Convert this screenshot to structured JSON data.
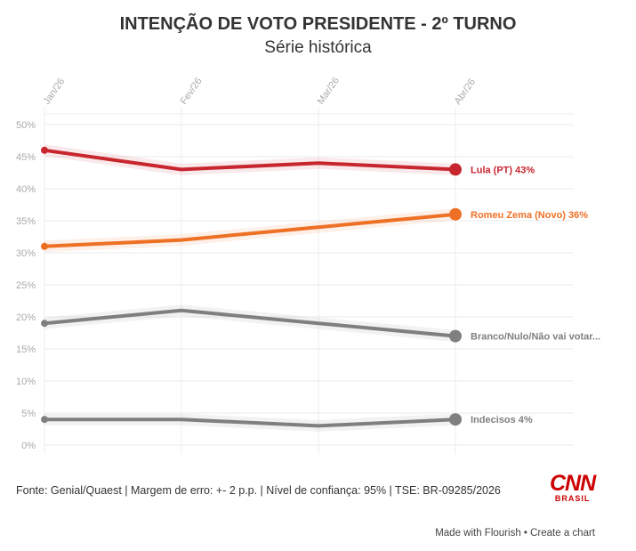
{
  "chart_data": {
    "type": "line",
    "title": "INTENÇÃO DE VOTO PRESIDENTE - 2º TURNO",
    "subtitle": "Série histórica",
    "categories": [
      "Jan/26",
      "Fev/26",
      "Mar/26",
      "Abr/26"
    ],
    "yticks": [
      "0%",
      "5%",
      "10%",
      "15%",
      "20%",
      "25%",
      "30%",
      "35%",
      "40%",
      "45%",
      "50%"
    ],
    "ylim": [
      0,
      50
    ],
    "series": [
      {
        "name": "Lula (PT)",
        "label": "Lula (PT) 43%",
        "color": "#c8262f",
        "values": [
          46,
          43,
          44,
          43
        ]
      },
      {
        "name": "Romeu Zema (Novo)",
        "label": "Romeu Zema (Novo) 36%",
        "color": "#ee7025",
        "values": [
          31,
          32,
          34,
          36
        ]
      },
      {
        "name": "Branco/Nulo/Não vai votar",
        "label": "Branco/Nulo/Não vai votar...",
        "color": "#7f7f7f",
        "values": [
          19,
          21,
          19,
          17
        ]
      },
      {
        "name": "Indecisos",
        "label": "Indecisos 4%",
        "color": "#7f7f7f",
        "values": [
          4,
          4,
          3,
          4
        ]
      }
    ]
  },
  "footer": {
    "source": "Fonte: Genial/Quaest | Margem de erro: +- 2 p.p. | Nível de confiança: 95% | TSE: BR-09285/2026",
    "made": "Made with Flourish • Create a chart"
  },
  "logo": {
    "text": "CNN",
    "sub": "BRASIL"
  }
}
